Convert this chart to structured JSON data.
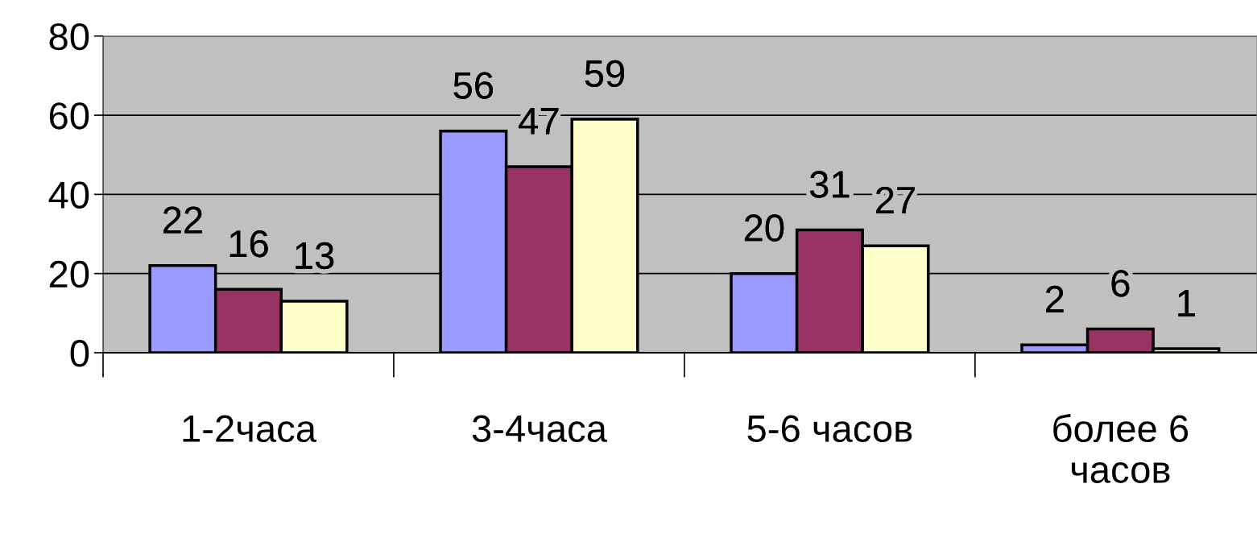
{
  "chart_data": {
    "type": "bar",
    "categories": [
      "1-2часа",
      "3-4часа",
      "5-6 часов",
      "более 6\nчасов"
    ],
    "series": [
      {
        "color": "#9999ff",
        "values": [
          22,
          56,
          20,
          2
        ]
      },
      {
        "color": "#993366",
        "values": [
          16,
          47,
          31,
          6
        ]
      },
      {
        "color": "#ffffcc",
        "values": [
          13,
          59,
          27,
          1
        ]
      }
    ],
    "ylim": [
      0,
      80
    ],
    "yticks": [
      0,
      20,
      40,
      60,
      80
    ],
    "grid": "y",
    "data_labels": true,
    "legend": false
  }
}
